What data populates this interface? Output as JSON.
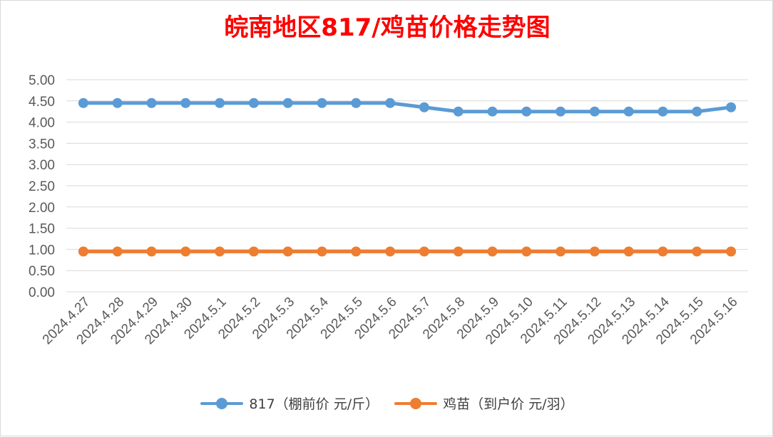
{
  "chart_data": {
    "type": "line",
    "title": "皖南地区817/鸡苗价格走势图",
    "categories": [
      "2024.4.27",
      "2024.4.28",
      "2024.4.29",
      "2024.4.30",
      "2024.5.1",
      "2024.5.2",
      "2024.5.3",
      "2024.5.4",
      "2024.5.5",
      "2024.5.6",
      "2024.5.7",
      "2024.5.8",
      "2024.5.9",
      "2024.5.10",
      "2024.5.11",
      "2024.5.12",
      "2024.5.13",
      "2024.5.14",
      "2024.5.15",
      "2024.5.16"
    ],
    "series": [
      {
        "name": "817（棚前价 元/斤）",
        "color": "#5b9bd5",
        "values": [
          4.45,
          4.45,
          4.45,
          4.45,
          4.45,
          4.45,
          4.45,
          4.45,
          4.45,
          4.45,
          4.35,
          4.25,
          4.25,
          4.25,
          4.25,
          4.25,
          4.25,
          4.25,
          4.25,
          4.35
        ]
      },
      {
        "name": "鸡苗（到户价 元/羽）",
        "color": "#ed7d31",
        "values": [
          0.95,
          0.95,
          0.95,
          0.95,
          0.95,
          0.95,
          0.95,
          0.95,
          0.95,
          0.95,
          0.95,
          0.95,
          0.95,
          0.95,
          0.95,
          0.95,
          0.95,
          0.95,
          0.95,
          0.95
        ]
      }
    ],
    "yticks": [
      "0.00",
      "0.50",
      "1.00",
      "1.50",
      "2.00",
      "2.50",
      "3.00",
      "3.50",
      "4.00",
      "4.50",
      "5.00"
    ],
    "ylim": [
      0,
      5
    ],
    "grid": true,
    "legend_position": "bottom",
    "title_color": "#ff0000",
    "gridline_color": "#d9d9d9",
    "tick_label_color": "#595959"
  }
}
